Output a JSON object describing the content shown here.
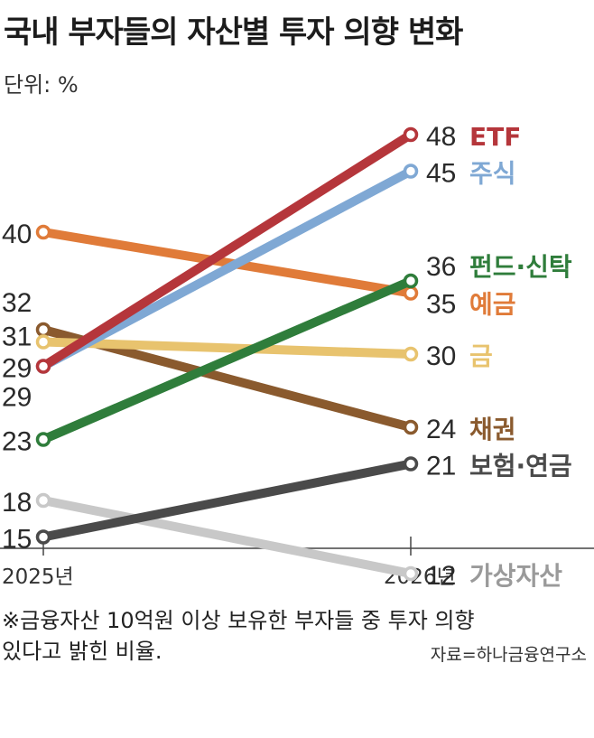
{
  "header": {
    "title": "국내 부자들의 자산별 투자 의향 변화",
    "unit": "단위: %"
  },
  "chart_data": {
    "type": "line",
    "title": "국내 부자들의 자산별 투자 의향 변화",
    "x": [
      "2025년",
      "2026년"
    ],
    "ylim": [
      10,
      50
    ],
    "grid": false,
    "series": [
      {
        "name": "ETF",
        "values": [
          29,
          48
        ],
        "color": "#b5363b"
      },
      {
        "name": "주식",
        "values": [
          29,
          45
        ],
        "color": "#7fa8d4"
      },
      {
        "name": "펀드·신탁",
        "values": [
          23,
          36
        ],
        "color": "#2f7d3b"
      },
      {
        "name": "예금",
        "values": [
          40,
          35
        ],
        "color": "#e07b39"
      },
      {
        "name": "금",
        "values": [
          31,
          30
        ],
        "color": "#e8c36e"
      },
      {
        "name": "채권",
        "values": [
          32,
          24
        ],
        "color": "#8a5a2e"
      },
      {
        "name": "보험·연금",
        "values": [
          15,
          21
        ],
        "color": "#4a4a4a"
      },
      {
        "name": "가상자산",
        "values": [
          18,
          12
        ],
        "color": "#c8c8c8"
      }
    ]
  },
  "footer": {
    "note_line1": "※금융자산 10억원 이상 보유한 부자들 중 투자 의향",
    "note_line2": "있다고 밝힌 비율.",
    "source": "자료=하나금융연구소"
  }
}
